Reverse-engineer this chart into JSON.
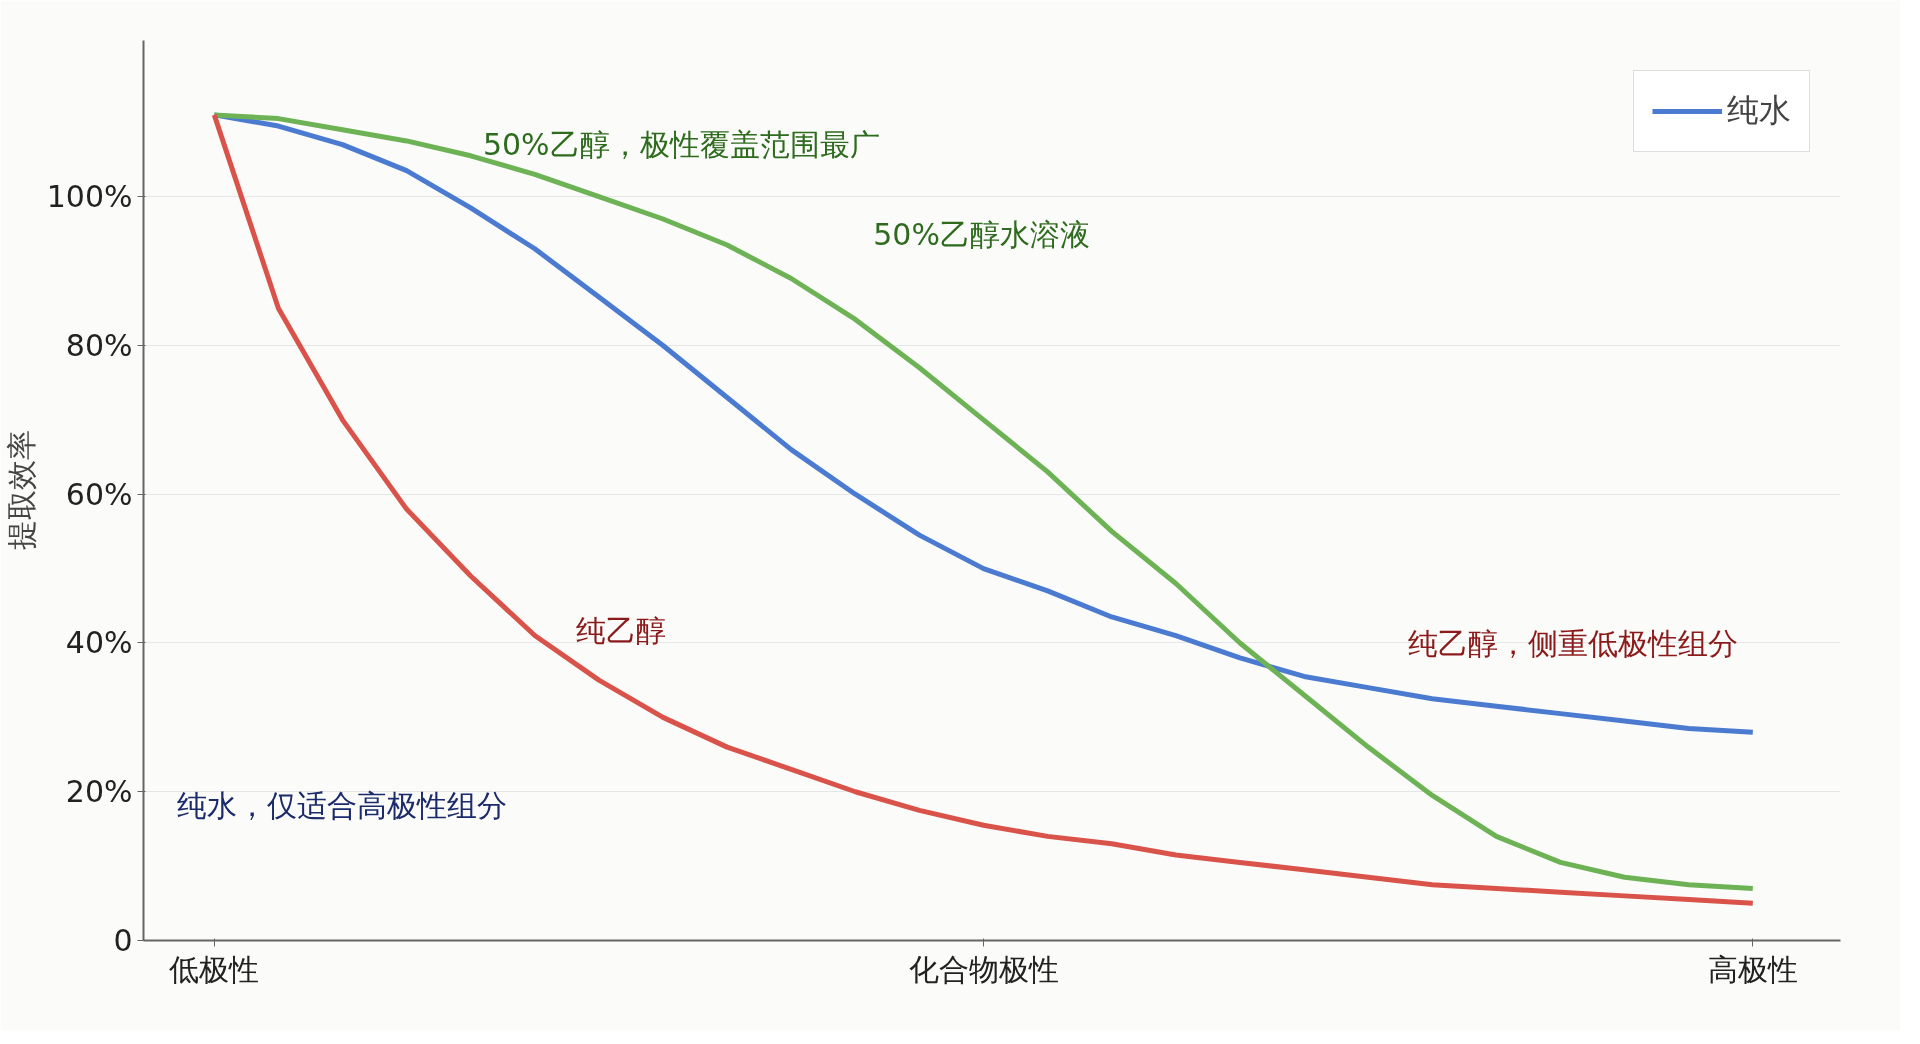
{
  "chart_data": {
    "type": "line",
    "ylabel": "提取效率",
    "categories": [
      "低极性",
      null,
      null,
      null,
      null,
      null,
      null,
      null,
      null,
      null,
      null,
      null,
      "化合物极性",
      null,
      null,
      null,
      null,
      null,
      null,
      null,
      null,
      null,
      null,
      null,
      "高极性"
    ],
    "ylim": [
      0,
      121
    ],
    "yticks": [
      0,
      {
        "value": 20,
        "label": "20%"
      },
      {
        "value": 40,
        "label": "40%"
      },
      {
        "value": 60,
        "label": "60%"
      },
      {
        "value": 80,
        "label": "80%"
      },
      {
        "value": 100,
        "label": "100%"
      }
    ],
    "grid": "y",
    "legend": "top right",
    "marker": "none",
    "line_style": "solid",
    "series": [
      {
        "name": "纯水",
        "color": "#4a7bd0",
        "values": [
          111,
          109.5,
          107,
          103.5,
          98.5,
          93,
          86.5,
          80,
          73,
          66,
          60,
          54.5,
          50,
          47,
          43.5,
          41,
          38,
          35.5,
          34,
          32.5,
          31.5,
          30.5,
          29.5,
          28.5,
          28
        ]
      },
      {
        "color": "#6db356",
        "values": [
          111,
          110.5,
          109,
          107.5,
          105.5,
          103,
          100,
          97,
          93.5,
          89,
          83.5,
          77,
          70,
          63,
          55,
          48,
          40,
          33,
          26,
          19.5,
          14,
          10.5,
          8.5,
          7.5,
          7
        ]
      },
      {
        "color": "#d9534a",
        "values": [
          111,
          85,
          70,
          58,
          49,
          41,
          35,
          30,
          26,
          23,
          20,
          17.5,
          15.5,
          14,
          13,
          11.5,
          10.5,
          9.5,
          8.5,
          7.5,
          7,
          6.5,
          6,
          5.5,
          5
        ]
      }
    ],
    "annotations": [
      "50%乙醇，极性覆盖范围最广",
      "50%乙醇水溶液",
      "纯乙醇",
      "纯乙醇，侧重低极性组分",
      "纯水，仅适合高极性组分"
    ]
  }
}
